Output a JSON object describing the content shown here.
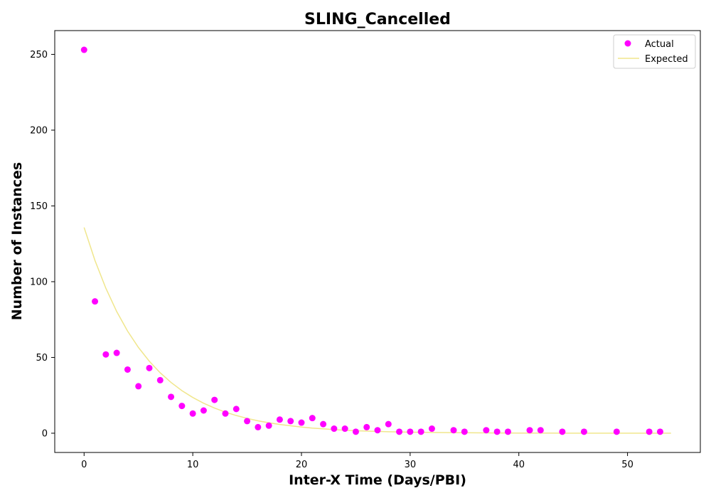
{
  "chart_data": {
    "type": "scatter",
    "title": "SLING_Cancelled",
    "xlabel": "Inter-X Time (Days/PBI)",
    "ylabel": "Number of Instances",
    "xlim": [
      -2.7,
      56.7
    ],
    "ylim": [
      -12.7,
      265.7
    ],
    "xticks": [
      0,
      10,
      20,
      30,
      40,
      50
    ],
    "yticks": [
      0,
      50,
      100,
      150,
      200,
      250
    ],
    "legend_position": "top-right",
    "grid": false,
    "series": [
      {
        "name": "Actual",
        "kind": "scatter",
        "color": "#ff00ff",
        "points": [
          [
            0,
            253
          ],
          [
            1,
            87
          ],
          [
            2,
            52
          ],
          [
            3,
            53
          ],
          [
            4,
            42
          ],
          [
            5,
            31
          ],
          [
            6,
            43
          ],
          [
            7,
            35
          ],
          [
            8,
            24
          ],
          [
            9,
            18
          ],
          [
            10,
            13
          ],
          [
            11,
            15
          ],
          [
            12,
            22
          ],
          [
            13,
            13
          ],
          [
            14,
            16
          ],
          [
            15,
            8
          ],
          [
            16,
            4
          ],
          [
            17,
            5
          ],
          [
            18,
            9
          ],
          [
            19,
            8
          ],
          [
            20,
            7
          ],
          [
            21,
            10
          ],
          [
            22,
            6
          ],
          [
            23,
            3
          ],
          [
            24,
            3
          ],
          [
            25,
            1
          ],
          [
            26,
            4
          ],
          [
            27,
            2
          ],
          [
            28,
            6
          ],
          [
            29,
            1
          ],
          [
            30,
            1
          ],
          [
            31,
            1
          ],
          [
            32,
            3
          ],
          [
            34,
            2
          ],
          [
            35,
            1
          ],
          [
            37,
            2
          ],
          [
            38,
            1
          ],
          [
            39,
            1
          ],
          [
            41,
            2
          ],
          [
            42,
            2
          ],
          [
            44,
            1
          ],
          [
            46,
            1
          ],
          [
            49,
            1
          ],
          [
            52,
            1
          ],
          [
            53,
            1
          ]
        ]
      },
      {
        "name": "Expected",
        "kind": "line",
        "color": "#f0e68c",
        "points": [
          [
            0,
            135.8
          ],
          [
            1,
            114.0
          ],
          [
            2,
            95.7
          ],
          [
            3,
            80.3
          ],
          [
            4,
            67.4
          ],
          [
            5,
            56.6
          ],
          [
            6,
            47.5
          ],
          [
            7,
            39.9
          ],
          [
            8,
            33.5
          ],
          [
            9,
            28.1
          ],
          [
            10,
            23.6
          ],
          [
            11,
            19.8
          ],
          [
            12,
            16.6
          ],
          [
            13,
            13.9
          ],
          [
            14,
            11.7
          ],
          [
            15,
            9.8
          ],
          [
            16,
            8.2
          ],
          [
            17,
            6.9
          ],
          [
            18,
            5.8
          ],
          [
            19,
            4.9
          ],
          [
            20,
            4.1
          ],
          [
            21,
            3.4
          ],
          [
            22,
            2.9
          ],
          [
            23,
            2.4
          ],
          [
            24,
            2.0
          ],
          [
            25,
            1.7
          ],
          [
            26,
            1.4
          ],
          [
            27,
            1.2
          ],
          [
            28,
            1.0
          ],
          [
            29,
            0.85
          ],
          [
            30,
            0.71
          ],
          [
            31,
            0.6
          ],
          [
            32,
            0.5
          ],
          [
            33,
            0.42
          ],
          [
            34,
            0.35
          ],
          [
            35,
            0.3
          ],
          [
            36,
            0.25
          ],
          [
            37,
            0.21
          ],
          [
            38,
            0.17
          ],
          [
            39,
            0.15
          ],
          [
            40,
            0.12
          ],
          [
            41,
            0.1
          ],
          [
            42,
            0.09
          ],
          [
            43,
            0.07
          ],
          [
            44,
            0.06
          ],
          [
            45,
            0.05
          ],
          [
            46,
            0.04
          ],
          [
            47,
            0.04
          ],
          [
            48,
            0.03
          ],
          [
            49,
            0.03
          ],
          [
            50,
            0.02
          ],
          [
            51,
            0.02
          ],
          [
            52,
            0.01
          ],
          [
            53,
            0.01
          ],
          [
            54,
            0.01
          ]
        ]
      }
    ]
  }
}
